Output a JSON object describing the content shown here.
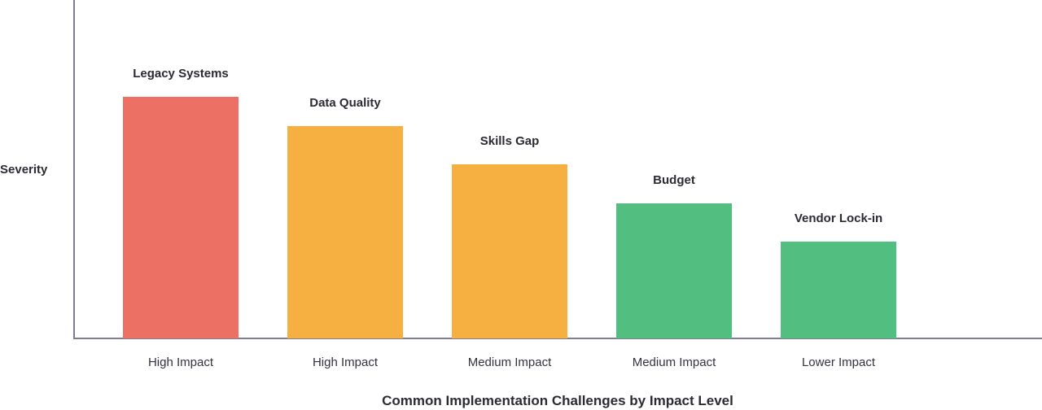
{
  "chart_data": {
    "type": "bar",
    "title": "Common Implementation Challenges by Impact Level",
    "xlabel": "",
    "ylabel": "Severity",
    "categories": [
      "High Impact",
      "High Impact",
      "Medium Impact",
      "Medium Impact",
      "Lower Impact"
    ],
    "bar_labels": [
      "Legacy Systems",
      "Data Quality",
      "Skills Gap",
      "Budget",
      "Vendor Lock-in"
    ],
    "values": [
      100,
      88,
      72,
      56,
      40
    ],
    "colors": [
      "#ec7063",
      "#f5b041",
      "#f5b041",
      "#52be80",
      "#52be80"
    ],
    "ylim": [
      0,
      100
    ],
    "grid": false,
    "legend": null,
    "ticks_shown": false
  },
  "labels": {
    "y_axis": "Severity",
    "title": "Common Implementation Challenges by Impact Level"
  }
}
